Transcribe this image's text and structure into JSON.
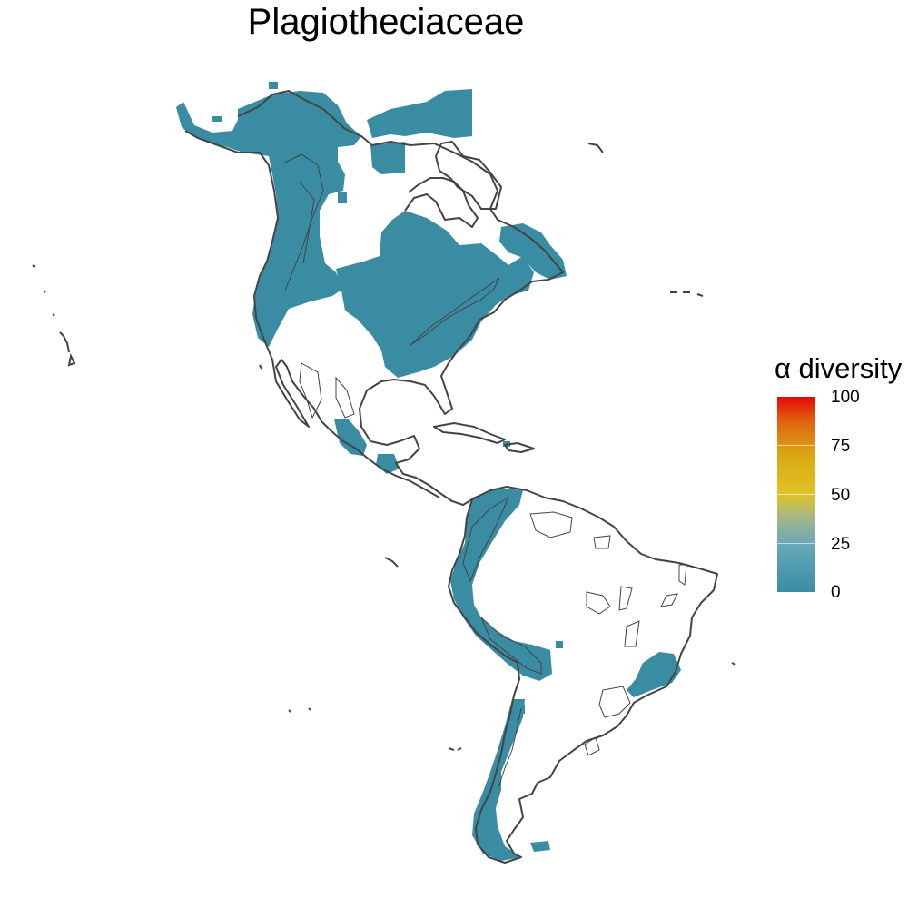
{
  "title": "Plagiotheciaceae",
  "legend": {
    "title": "α diversity",
    "ticks": [
      "100",
      "75",
      "50",
      "25",
      "0"
    ],
    "range": [
      0,
      100
    ],
    "colors": {
      "low": "#3a8ca3",
      "mid": "#e0c226",
      "high": "#e60505"
    }
  },
  "map": {
    "region": "Americas",
    "fill_color": "#3a8ca3",
    "outline_color": "#444444"
  }
}
